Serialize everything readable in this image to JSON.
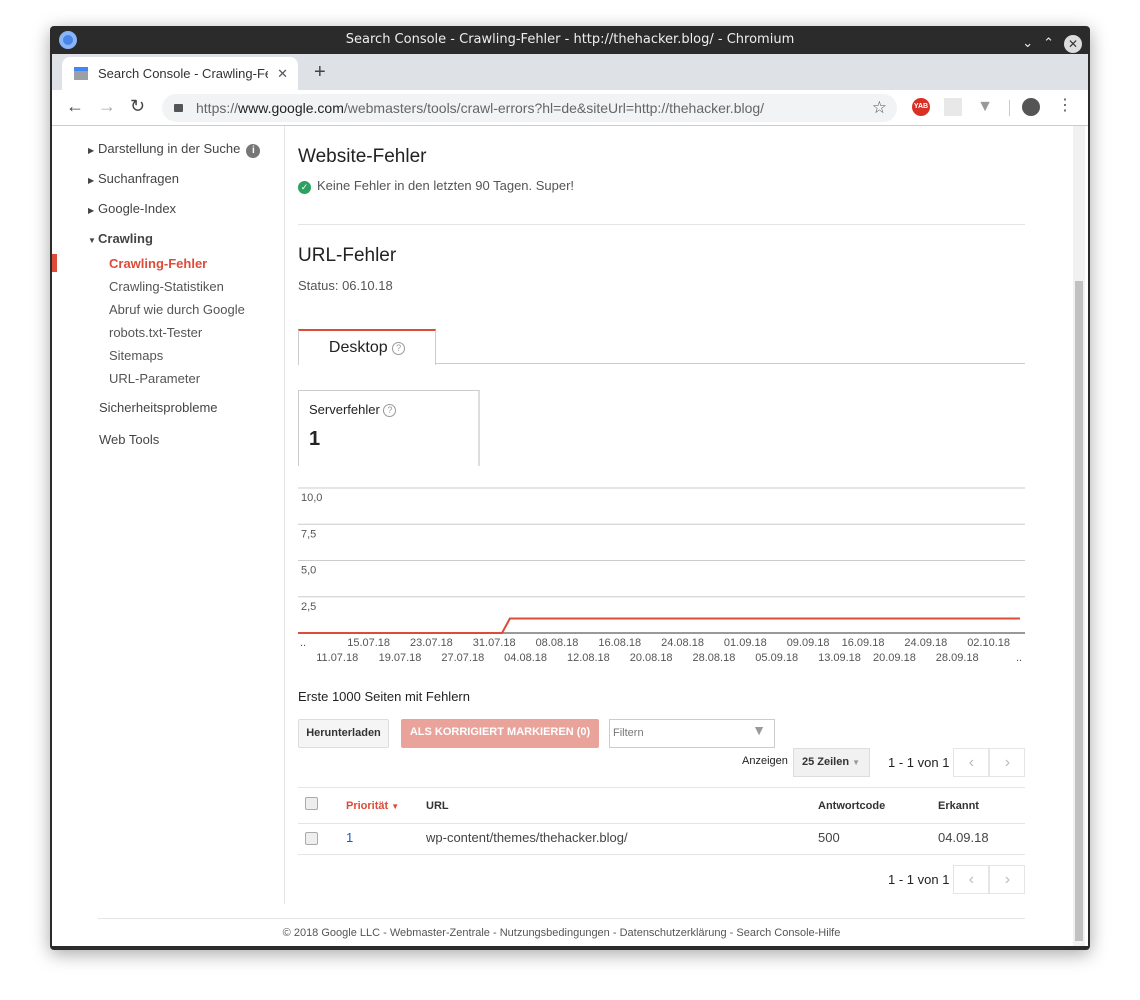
{
  "window": {
    "title": "Search Console - Crawling-Fehler - http://thehacker.blog/ - Chromium"
  },
  "tab": {
    "title": "Search Console - Crawling-Fehler"
  },
  "address": {
    "scheme": "https://",
    "host": "www.google.com",
    "path": "/webmasters/tools/crawl-errors?hl=de&siteUrl=http://thehacker.blog/"
  },
  "extensions": [
    {
      "name": "yab-icon",
      "label": "YAB",
      "color": "#d93025"
    },
    {
      "name": "atom-icon"
    },
    {
      "name": "vue-icon"
    }
  ],
  "sidebar": {
    "items": [
      {
        "label": "Darstellung in der Suche",
        "has_info": true
      },
      {
        "label": "Suchanfragen"
      },
      {
        "label": "Google-Index"
      },
      {
        "label": "Crawling",
        "expanded": true
      }
    ],
    "subitems": [
      "Crawling-Fehler",
      "Crawling-Statistiken",
      "Abruf wie durch Google",
      "robots.txt-Tester",
      "Sitemaps",
      "URL-Parameter"
    ],
    "active": "Crawling-Fehler",
    "bottom": [
      "Sicherheitsprobleme",
      "Web Tools"
    ]
  },
  "site_errors": {
    "title": "Website-Fehler",
    "message": "Keine Fehler in den letzten 90 Tagen. Super!"
  },
  "url_errors": {
    "title": "URL-Fehler",
    "status": "Status: 06.10.18",
    "tab": "Desktop",
    "card": {
      "label": "Serverfehler",
      "value": "1"
    }
  },
  "chart_data": {
    "type": "line",
    "ylim": [
      0,
      10
    ],
    "yticks": [
      "2,5",
      "5,0",
      "7,5",
      "10,0"
    ],
    "ytick_values": [
      2.5,
      5,
      7.5,
      10
    ],
    "xlim": [
      "06.07.18",
      "06.10.18"
    ],
    "xticks_row1": [
      "15.07.18",
      "23.07.18",
      "31.07.18",
      "08.08.18",
      "16.08.18",
      "24.08.18",
      "01.09.18",
      "09.09.18",
      "16.09.18",
      "24.09.18",
      "02.10.18"
    ],
    "xticks_row2": [
      "11.07.18",
      "19.07.18",
      "27.07.18",
      "04.08.18",
      "12.08.18",
      "20.08.18",
      "28.08.18",
      "05.09.18",
      "13.09.18",
      "20.09.18",
      "28.09.18"
    ],
    "edge_label": "..",
    "grid": true,
    "color": "#dd4b39",
    "series": [
      {
        "points": [
          [
            "06.07.18",
            0
          ],
          [
            "01.08.18",
            0
          ],
          [
            "02.08.18",
            1
          ],
          [
            "06.10.18",
            1
          ]
        ]
      }
    ]
  },
  "table_section": {
    "title": "Erste 1000 Seiten mit Fehlern",
    "download": "Herunterladen",
    "mark_fixed": "ALS KORRIGIERT MARKIEREN (0)",
    "filter_placeholder": "Filtern",
    "show_label": "Anzeigen",
    "rows_select": "25 Zeilen",
    "pager": "1 - 1 von 1",
    "columns": [
      "Priorität",
      "URL",
      "Antwortcode",
      "Erkannt"
    ],
    "rows": [
      {
        "priority": "1",
        "url": "wp-content/themes/thehacker.blog/",
        "code": "500",
        "detected": "04.09.18"
      }
    ]
  },
  "footer": {
    "links": [
      "© 2018 Google LLC",
      "Webmaster-Zentrale",
      "Nutzungsbedingungen",
      "Datenschutzerklärung",
      "Search Console-Hilfe"
    ],
    "sep": " - "
  }
}
